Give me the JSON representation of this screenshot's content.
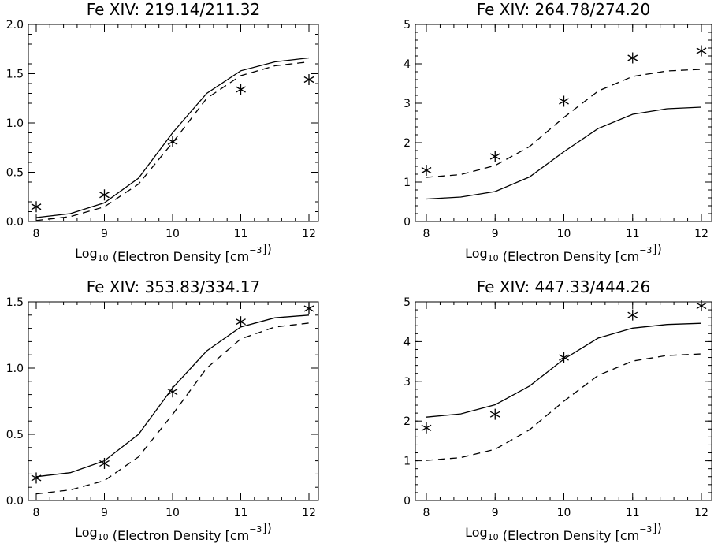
{
  "chart_data": [
    {
      "type": "line",
      "title": "Fe XIV: 219.14/211.32",
      "xlabel": "Log",
      "xlabel_sub": "10",
      "xlabel_rest": " (Electron Density [cm",
      "xlabel_sup": "−3",
      "xlabel_end": "])",
      "xlim": [
        8,
        12
      ],
      "ylim": [
        0,
        2.0
      ],
      "xticks": [
        8,
        9,
        10,
        11,
        12
      ],
      "yticks": [
        0.0,
        0.5,
        1.0,
        1.5,
        2.0
      ],
      "ytick_labels": [
        "0.0",
        "0.5",
        "1.0",
        "1.5",
        "2.0"
      ],
      "x": [
        8,
        8.5,
        9,
        9.5,
        10,
        10.5,
        11,
        11.5,
        12
      ],
      "series": [
        {
          "style": "solid",
          "values": [
            0.04,
            0.08,
            0.19,
            0.44,
            0.9,
            1.3,
            1.53,
            1.62,
            1.66
          ]
        },
        {
          "style": "dashed",
          "values": [
            0.01,
            0.05,
            0.15,
            0.38,
            0.8,
            1.25,
            1.48,
            1.58,
            1.62
          ]
        },
        {
          "style": "asterisk",
          "x": [
            8,
            9,
            10,
            11,
            12
          ],
          "values": [
            0.15,
            0.27,
            0.81,
            1.34,
            1.44
          ]
        }
      ]
    },
    {
      "type": "line",
      "title": "Fe XIV: 264.78/274.20",
      "xlabel": "Log",
      "xlabel_sub": "10",
      "xlabel_rest": " (Electron Density [cm",
      "xlabel_sup": "−3",
      "xlabel_end": "])",
      "xlim": [
        8,
        12
      ],
      "ylim": [
        0,
        5
      ],
      "xticks": [
        8,
        9,
        10,
        11,
        12
      ],
      "yticks": [
        0,
        1,
        2,
        3,
        4,
        5
      ],
      "ytick_labels": [
        "0",
        "1",
        "2",
        "3",
        "4",
        "5"
      ],
      "x": [
        8,
        8.5,
        9,
        9.5,
        10,
        10.5,
        11,
        11.5,
        12
      ],
      "series": [
        {
          "style": "solid",
          "values": [
            0.57,
            0.62,
            0.76,
            1.13,
            1.77,
            2.36,
            2.72,
            2.86,
            2.9
          ]
        },
        {
          "style": "dashed",
          "values": [
            1.12,
            1.19,
            1.42,
            1.9,
            2.64,
            3.31,
            3.68,
            3.82,
            3.86
          ]
        },
        {
          "style": "asterisk",
          "x": [
            8,
            9,
            10,
            11,
            12
          ],
          "values": [
            1.3,
            1.65,
            3.05,
            4.15,
            4.33
          ]
        }
      ]
    },
    {
      "type": "line",
      "title": "Fe XIV: 353.83/334.17",
      "xlabel": "Log",
      "xlabel_sub": "10",
      "xlabel_rest": " (Electron Density [cm",
      "xlabel_sup": "−3",
      "xlabel_end": "])",
      "xlim": [
        8,
        12
      ],
      "ylim": [
        0,
        1.5
      ],
      "xticks": [
        8,
        9,
        10,
        11,
        12
      ],
      "yticks": [
        0.0,
        0.5,
        1.0,
        1.5
      ],
      "ytick_labels": [
        "0.0",
        "0.5",
        "1.0",
        "1.5"
      ],
      "x": [
        8,
        8.5,
        9,
        9.5,
        10,
        10.5,
        11,
        11.5,
        12
      ],
      "series": [
        {
          "style": "solid",
          "values": [
            0.18,
            0.21,
            0.3,
            0.5,
            0.85,
            1.13,
            1.31,
            1.38,
            1.4
          ]
        },
        {
          "style": "dashed",
          "values": [
            0.05,
            0.08,
            0.15,
            0.33,
            0.65,
            1.0,
            1.22,
            1.31,
            1.34
          ]
        },
        {
          "style": "asterisk",
          "x": [
            8,
            9,
            10,
            11,
            12
          ],
          "values": [
            0.17,
            0.28,
            0.82,
            1.35,
            1.45
          ]
        }
      ]
    },
    {
      "type": "line",
      "title": "Fe XIV: 447.33/444.26",
      "xlabel": "Log",
      "xlabel_sub": "10",
      "xlabel_rest": " (Electron Density [cm",
      "xlabel_sup": "−3",
      "xlabel_end": "])",
      "xlim": [
        8,
        12
      ],
      "ylim": [
        0,
        5
      ],
      "xticks": [
        8,
        9,
        10,
        11,
        12
      ],
      "yticks": [
        0,
        1,
        2,
        3,
        4,
        5
      ],
      "ytick_labels": [
        "0",
        "1",
        "2",
        "3",
        "4",
        "5"
      ],
      "x": [
        8,
        8.5,
        9,
        9.5,
        10,
        10.5,
        11,
        11.5,
        12
      ],
      "series": [
        {
          "style": "solid",
          "values": [
            2.1,
            2.18,
            2.41,
            2.88,
            3.56,
            4.09,
            4.34,
            4.43,
            4.46
          ]
        },
        {
          "style": "dashed",
          "values": [
            1.01,
            1.08,
            1.29,
            1.78,
            2.5,
            3.15,
            3.51,
            3.65,
            3.69
          ]
        },
        {
          "style": "asterisk",
          "x": [
            8,
            9,
            10,
            11,
            12
          ],
          "values": [
            1.83,
            2.17,
            3.6,
            4.67,
            4.9
          ]
        }
      ]
    }
  ]
}
